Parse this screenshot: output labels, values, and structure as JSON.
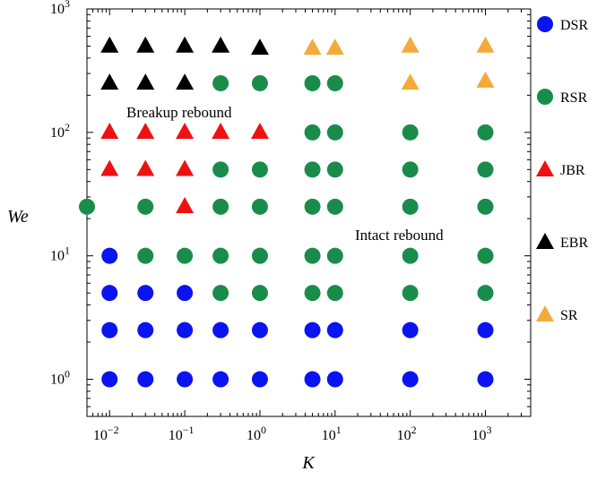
{
  "chart_data": {
    "type": "scatter",
    "title": "",
    "xlabel": "K",
    "ylabel": "We",
    "xscale": "log",
    "yscale": "log",
    "xlim": [
      0.005,
      4000
    ],
    "ylim": [
      0.5,
      1000
    ],
    "x_ticks": [
      {
        "base": "10",
        "exp": "−2"
      },
      {
        "base": "10",
        "exp": "−1"
      },
      {
        "base": "10",
        "exp": "0"
      },
      {
        "base": "10",
        "exp": "1"
      },
      {
        "base": "10",
        "exp": "2"
      },
      {
        "base": "10",
        "exp": "3"
      }
    ],
    "y_ticks": [
      {
        "base": "10",
        "exp": "0"
      },
      {
        "base": "10",
        "exp": "1"
      },
      {
        "base": "10",
        "exp": "2"
      },
      {
        "base": "10",
        "exp": "3"
      }
    ],
    "grid": false,
    "legend_position": "right-outside",
    "annotations": [
      {
        "text": "Breakup rebound",
        "x": 0.035,
        "y": 160
      },
      {
        "text": "Intact rebound",
        "x": 100,
        "y": 16.5
      }
    ],
    "series": [
      {
        "name": "DSR",
        "marker": "circle",
        "color": "#0a14f0",
        "points": [
          [
            0.01,
            10
          ],
          [
            0.01,
            5
          ],
          [
            0.03,
            5
          ],
          [
            0.1,
            5
          ],
          [
            0.01,
            2.5
          ],
          [
            0.03,
            2.5
          ],
          [
            0.1,
            2.5
          ],
          [
            0.3,
            2.5
          ],
          [
            1,
            2.5
          ],
          [
            5,
            2.5
          ],
          [
            10,
            2.5
          ],
          [
            100,
            2.5
          ],
          [
            1000,
            2.5
          ],
          [
            0.01,
            1
          ],
          [
            0.03,
            1
          ],
          [
            0.1,
            1
          ],
          [
            0.3,
            1
          ],
          [
            1,
            1
          ],
          [
            5,
            1
          ],
          [
            10,
            1
          ],
          [
            100,
            1
          ],
          [
            1000,
            1
          ]
        ]
      },
      {
        "name": "RSR",
        "marker": "circle",
        "color": "#1a8c4a",
        "points": [
          [
            0.3,
            250
          ],
          [
            1,
            250
          ],
          [
            5,
            250
          ],
          [
            10,
            250
          ],
          [
            5,
            100
          ],
          [
            10,
            100
          ],
          [
            100,
            100
          ],
          [
            1000,
            100
          ],
          [
            0.3,
            50
          ],
          [
            1,
            50
          ],
          [
            5,
            50
          ],
          [
            10,
            50
          ],
          [
            100,
            50
          ],
          [
            1000,
            50
          ],
          [
            0.005,
            25
          ],
          [
            0.03,
            25
          ],
          [
            0.3,
            25
          ],
          [
            1,
            25
          ],
          [
            5,
            25
          ],
          [
            10,
            25
          ],
          [
            100,
            25
          ],
          [
            1000,
            25
          ],
          [
            0.03,
            10
          ],
          [
            0.1,
            10
          ],
          [
            0.3,
            10
          ],
          [
            1,
            10
          ],
          [
            5,
            10
          ],
          [
            10,
            10
          ],
          [
            100,
            10
          ],
          [
            1000,
            10
          ],
          [
            0.3,
            5
          ],
          [
            1,
            5
          ],
          [
            5,
            5
          ],
          [
            10,
            5
          ],
          [
            100,
            5
          ],
          [
            1000,
            5
          ]
        ]
      },
      {
        "name": "JBR",
        "marker": "triangle",
        "color": "#ee1111",
        "points": [
          [
            0.01,
            100
          ],
          [
            0.03,
            100
          ],
          [
            0.1,
            100
          ],
          [
            0.3,
            100
          ],
          [
            1,
            100
          ],
          [
            0.01,
            50
          ],
          [
            0.03,
            50
          ],
          [
            0.1,
            50
          ],
          [
            0.1,
            25
          ]
        ]
      },
      {
        "name": "EBR",
        "marker": "triangle",
        "color": "#000000",
        "points": [
          [
            0.01,
            500
          ],
          [
            0.03,
            500
          ],
          [
            0.1,
            500
          ],
          [
            0.3,
            500
          ],
          [
            1,
            480
          ],
          [
            0.01,
            250
          ],
          [
            0.03,
            250
          ],
          [
            0.1,
            250
          ]
        ]
      },
      {
        "name": "SR",
        "marker": "triangle",
        "color": "#f5aa3c",
        "points": [
          [
            5,
            480
          ],
          [
            10,
            480
          ],
          [
            100,
            500
          ],
          [
            1000,
            500
          ],
          [
            100,
            250
          ],
          [
            1000,
            260
          ]
        ]
      }
    ]
  }
}
